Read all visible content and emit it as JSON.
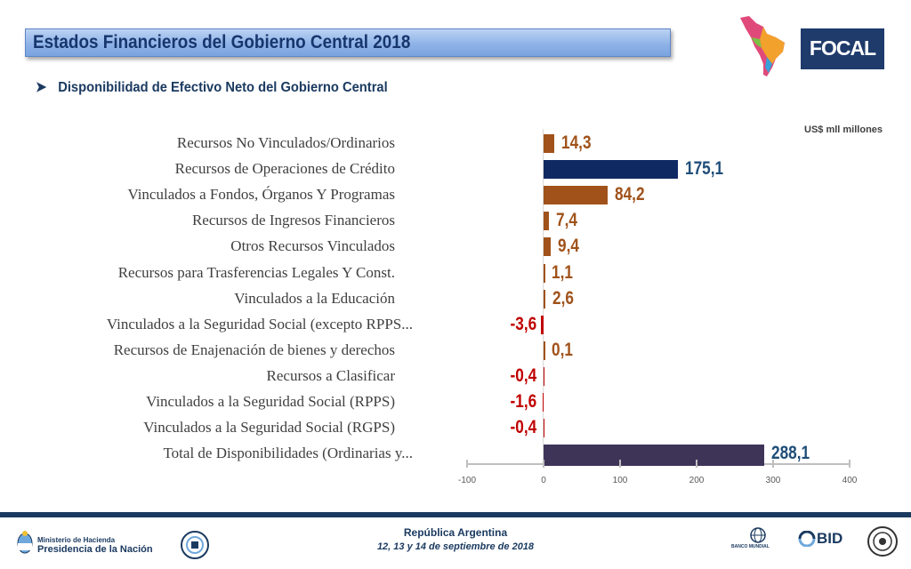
{
  "header": {
    "title": "Estados Financieros del Gobierno Central 2018",
    "subtitle": "Disponibilidad de Efectivo Neto del Gobierno Central",
    "unit": "US$ mll millones"
  },
  "logos": {
    "focal": "FOCAL",
    "ministerio_line1": "Ministerio de Hacienda",
    "ministerio_line2": "Presidencia de la Nación",
    "bid": "BID",
    "banco_mundial": "BANCO MUNDIAL"
  },
  "footer": {
    "line1": "República Argentina",
    "line2": "12, 13 y 14 de septiembre de 2018"
  },
  "colors": {
    "brown": "#a0521a",
    "navy": "#0f2a63",
    "purple": "#3e3458",
    "red_text": "#c00000",
    "brown_text": "#a0521a",
    "navy_text": "#1f4e79"
  },
  "chart_data": {
    "type": "bar",
    "orientation": "horizontal",
    "categories": [
      "Recursos No Vinculados/Ordinarios",
      "Recursos de Operaciones de Crédito",
      "Vinculados a Fondos, Órganos Y Programas",
      "Recursos de Ingresos Financieros",
      "Otros Recursos Vinculados",
      "Recursos para Trasferencias Legales Y Const.",
      "Vinculados a la Educación",
      "Vinculados a la Seguridad Social (excepto RPPS...",
      "Recursos de Enajenación de bienes y derechos",
      "Recursos a Clasificar",
      "Vinculados a la Seguridad Social (RPPS)",
      "Vinculados a la Seguridad Social (RGPS)",
      "Total de Disponibilidades (Ordinarias y..."
    ],
    "values": [
      14.3,
      175.1,
      84.2,
      7.4,
      9.4,
      1.1,
      2.6,
      -3.6,
      0.1,
      -0.4,
      -1.6,
      -0.4,
      288.1
    ],
    "labels": [
      "14,3",
      "175,1",
      "84,2",
      "7,4",
      "9,4",
      "1,1",
      "2,6",
      "-3,6",
      "0,1",
      "-0,4",
      "-1,6",
      "-0,4",
      "288,1"
    ],
    "xlim": [
      -100,
      400
    ],
    "ticks": [
      -100,
      0,
      100,
      200,
      300,
      400
    ],
    "tick_labels": [
      "-100",
      "0",
      "100",
      "200",
      "300",
      "400"
    ],
    "grid": false,
    "legend": "none"
  }
}
